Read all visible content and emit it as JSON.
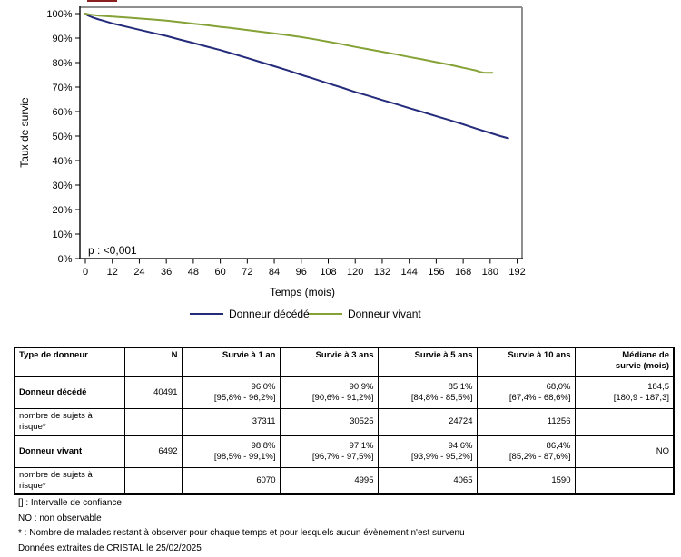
{
  "chart_data": {
    "type": "line",
    "title": "",
    "xlabel": "Temps (mois)",
    "ylabel": "Taux de survie",
    "annotation": "p : <0,001",
    "xlim": [
      0,
      192
    ],
    "ylim": [
      0,
      100
    ],
    "grid": false,
    "legend_position": "bottom",
    "xtick_values": [
      0,
      12,
      24,
      36,
      48,
      60,
      72,
      84,
      96,
      108,
      120,
      132,
      144,
      156,
      168,
      180,
      192
    ],
    "xtick_labels": [
      "0",
      "12",
      "24",
      "36",
      "48",
      "60",
      "72",
      "84",
      "96",
      "108",
      "120",
      "132",
      "144",
      "156",
      "168",
      "180",
      "192"
    ],
    "ytick_values": [
      0,
      10,
      20,
      30,
      40,
      50,
      60,
      70,
      80,
      90,
      100
    ],
    "ytick_labels": [
      "0%",
      "10%",
      "20%",
      "30%",
      "40%",
      "50%",
      "60%",
      "70%",
      "80%",
      "90%",
      "100%"
    ],
    "series": [
      {
        "name": "Donneur décédé",
        "color": "#242b7b",
        "points": [
          [
            0,
            100
          ],
          [
            1,
            99.3
          ],
          [
            3,
            98.5
          ],
          [
            6,
            97.6
          ],
          [
            9,
            96.8
          ],
          [
            12,
            96.0
          ],
          [
            18,
            94.7
          ],
          [
            24,
            93.4
          ],
          [
            30,
            92.1
          ],
          [
            36,
            90.9
          ],
          [
            42,
            89.4
          ],
          [
            48,
            88.0
          ],
          [
            54,
            86.5
          ],
          [
            60,
            85.1
          ],
          [
            66,
            83.5
          ],
          [
            72,
            81.9
          ],
          [
            78,
            80.2
          ],
          [
            84,
            78.5
          ],
          [
            90,
            76.8
          ],
          [
            96,
            75.0
          ],
          [
            102,
            73.3
          ],
          [
            108,
            71.5
          ],
          [
            114,
            69.8
          ],
          [
            120,
            68.0
          ],
          [
            126,
            66.4
          ],
          [
            132,
            64.7
          ],
          [
            138,
            63.1
          ],
          [
            144,
            61.4
          ],
          [
            150,
            59.8
          ],
          [
            156,
            58.1
          ],
          [
            162,
            56.5
          ],
          [
            168,
            54.8
          ],
          [
            174,
            53.0
          ],
          [
            180,
            51.3
          ],
          [
            184.5,
            50.0
          ],
          [
            188,
            49.1
          ]
        ]
      },
      {
        "name": "Donneur vivant",
        "color": "#85a236",
        "points": [
          [
            0,
            100
          ],
          [
            2,
            99.6
          ],
          [
            6,
            99.2
          ],
          [
            12,
            98.8
          ],
          [
            18,
            98.4
          ],
          [
            24,
            98.0
          ],
          [
            30,
            97.6
          ],
          [
            36,
            97.1
          ],
          [
            42,
            96.5
          ],
          [
            48,
            95.9
          ],
          [
            54,
            95.3
          ],
          [
            60,
            94.6
          ],
          [
            66,
            94.0
          ],
          [
            72,
            93.3
          ],
          [
            78,
            92.6
          ],
          [
            84,
            91.9
          ],
          [
            90,
            91.2
          ],
          [
            96,
            90.4
          ],
          [
            102,
            89.5
          ],
          [
            108,
            88.5
          ],
          [
            114,
            87.5
          ],
          [
            120,
            86.4
          ],
          [
            126,
            85.4
          ],
          [
            132,
            84.4
          ],
          [
            138,
            83.4
          ],
          [
            144,
            82.3
          ],
          [
            150,
            81.3
          ],
          [
            156,
            80.2
          ],
          [
            162,
            79.1
          ],
          [
            168,
            77.9
          ],
          [
            172,
            77.1
          ],
          [
            174,
            76.7
          ],
          [
            175,
            76.3
          ],
          [
            177,
            75.9
          ],
          [
            181,
            75.8
          ]
        ]
      }
    ]
  },
  "table": {
    "columns": [
      "Type de donneur",
      "N",
      "Survie à 1 an",
      "Survie à 3 ans",
      "Survie à 5 ans",
      "Survie à 10 ans",
      "Médiane de\nsurvie (mois)"
    ],
    "rows": [
      {
        "type": "main",
        "label": "Donneur décédé",
        "n": "40491",
        "cells": [
          [
            "96,0%",
            "[95,8% - 96,2%]"
          ],
          [
            "90,9%",
            "[90,6% - 91,2%]"
          ],
          [
            "85,1%",
            "[84,8% - 85,5%]"
          ],
          [
            "68,0%",
            "[67,4% - 68,6%]"
          ],
          [
            "184,5",
            "[180,9 - 187,3]"
          ]
        ]
      },
      {
        "type": "risk",
        "label": "nombre de sujets à risque*",
        "n": "",
        "cells": [
          [
            "37311"
          ],
          [
            "30525"
          ],
          [
            "24724"
          ],
          [
            "11256"
          ],
          [
            ""
          ]
        ]
      },
      {
        "type": "main",
        "label": "Donneur vivant",
        "n": "6492",
        "cells": [
          [
            "98,8%",
            "[98,5% - 99,1%]"
          ],
          [
            "97,1%",
            "[96,7% - 97,5%]"
          ],
          [
            "94,6%",
            "[93,9% - 95,2%]"
          ],
          [
            "86,4%",
            "[85,2% - 87,6%]"
          ],
          [
            "NO"
          ]
        ]
      },
      {
        "type": "risk",
        "label": "nombre de sujets à risque*",
        "n": "",
        "cells": [
          [
            "6070"
          ],
          [
            "4995"
          ],
          [
            "4065"
          ],
          [
            "1590"
          ],
          [
            ""
          ]
        ]
      }
    ]
  },
  "footnotes": [
    "[] : Intervalle de confiance",
    "NO : non observable",
    "* : Nombre de malades restant à observer pour chaque temps et pour lesquels aucun évènement n'est survenu",
    "Données extraites de CRISTAL le 25/02/2025"
  ]
}
